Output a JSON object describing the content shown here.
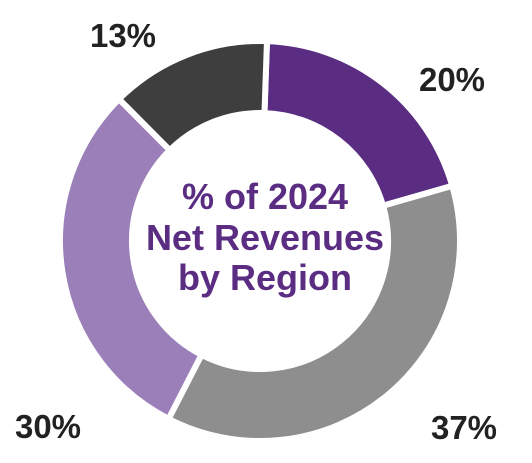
{
  "chart_data": {
    "type": "pie",
    "title_lines": [
      "% of 2024",
      "Net Revenues",
      "by Region"
    ],
    "categories": [
      "",
      "",
      "",
      ""
    ],
    "values": [
      20,
      37,
      30,
      13
    ],
    "labels": [
      "20%",
      "37%",
      "30%",
      "13%"
    ],
    "colors": [
      "#5a2d82",
      "#8e8e8e",
      "#9b7fb8",
      "#3e3e3e"
    ],
    "donut": true,
    "legend": "none"
  }
}
